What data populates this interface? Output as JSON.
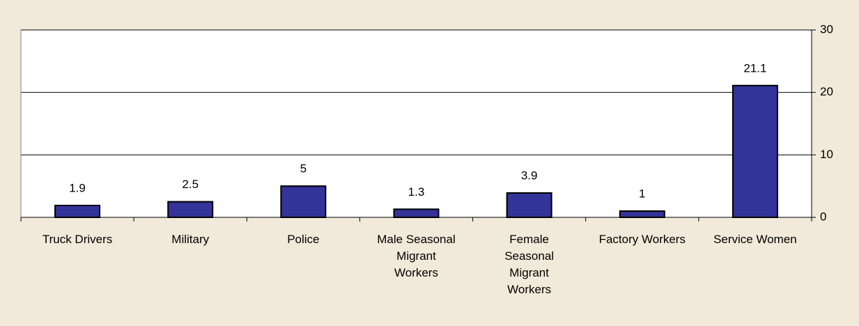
{
  "chart_data": {
    "type": "bar",
    "categories": [
      "Truck Drivers",
      "Military",
      "Police",
      "Male Seasonal Migrant Workers",
      "Female Seasonal Migrant Workers",
      "Factory Workers",
      "Service Women"
    ],
    "values": [
      1.9,
      2.5,
      5,
      1.3,
      3.9,
      1,
      21.1
    ],
    "color": "#333399",
    "ylim": [
      0,
      30
    ],
    "yticks": [
      0,
      10,
      20,
      30
    ],
    "grid": true,
    "y_axis_side": "right"
  }
}
